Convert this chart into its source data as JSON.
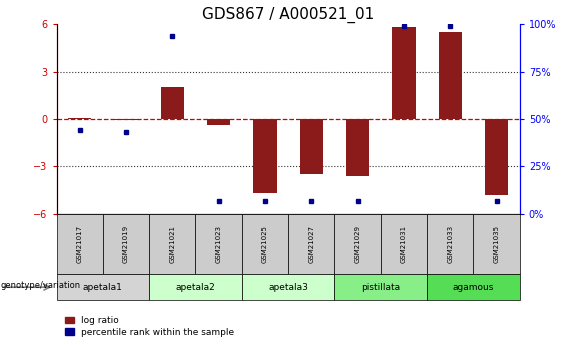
{
  "title": "GDS867 / A000521_01",
  "samples": [
    "GSM21017",
    "GSM21019",
    "GSM21021",
    "GSM21023",
    "GSM21025",
    "GSM21027",
    "GSM21029",
    "GSM21031",
    "GSM21033",
    "GSM21035"
  ],
  "log_ratio": [
    0.05,
    -0.08,
    2.0,
    -0.4,
    -4.7,
    -3.5,
    -3.6,
    5.8,
    5.5,
    -4.8
  ],
  "percentile_rank": [
    44,
    43,
    94,
    7,
    7,
    7,
    7,
    99,
    99,
    7
  ],
  "groups_def": [
    {
      "name": "apetala1",
      "indices": [
        0,
        1
      ],
      "color": "#d4d4d4"
    },
    {
      "name": "apetala2",
      "indices": [
        2,
        3
      ],
      "color": "#ccffcc"
    },
    {
      "name": "apetala3",
      "indices": [
        4,
        5
      ],
      "color": "#ccffcc"
    },
    {
      "name": "pistillata",
      "indices": [
        6,
        7
      ],
      "color": "#88ee88"
    },
    {
      "name": "agamous",
      "indices": [
        8,
        9
      ],
      "color": "#55dd55"
    }
  ],
  "ylim_left": [
    -6,
    6
  ],
  "ylim_right": [
    0,
    100
  ],
  "yticks_left": [
    -6,
    -3,
    0,
    3,
    6
  ],
  "yticks_right": [
    0,
    25,
    50,
    75,
    100
  ],
  "bar_color": "#8b1a1a",
  "dot_color": "#00008b",
  "zero_line_color": "#cc0000",
  "grid_color": "#333333",
  "background_color": "#ffffff",
  "title_fontsize": 11,
  "tick_fontsize": 7,
  "sample_box_color": "#cccccc",
  "legend_items": [
    "log ratio",
    "percentile rank within the sample"
  ]
}
